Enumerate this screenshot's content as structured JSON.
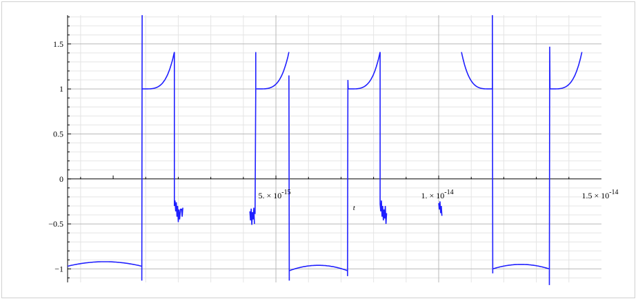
{
  "chart_data": {
    "type": "line",
    "title": "",
    "xlabel": "t",
    "ylabel": "",
    "xlim": [
      -1.4e-15,
      1.5e-14
    ],
    "ylim": [
      -1.15,
      1.82
    ],
    "grid": true,
    "legend": "none",
    "colors": {
      "line": "#1f1fff",
      "grid_major": "#b8b8b8",
      "grid_minor": "#e4e4e4",
      "axis": "#000000"
    },
    "x_ticks": [
      {
        "value": 5e-15,
        "mantissa": "5. × 10",
        "exp": "-15"
      },
      {
        "value": 1e-14,
        "mantissa": "1. × 10",
        "exp": "-14"
      },
      {
        "value": 1.5e-14,
        "mantissa": "1.5 × 10",
        "exp": "-14"
      }
    ],
    "y_ticks": [
      {
        "value": 1.5,
        "label": "1.5"
      },
      {
        "value": 1,
        "label": "1"
      },
      {
        "value": 0.5,
        "label": "0.5"
      },
      {
        "value": 0,
        "label": "0"
      },
      {
        "value": -0.5,
        "label": "−0.5"
      },
      {
        "value": -1,
        "label": "−1"
      }
    ],
    "series": [
      {
        "segments": [
          {
            "kind": "curve",
            "x0": -1.4e-15,
            "x1": 8.8e-16,
            "ycenter": -0.97,
            "dir": -1,
            "amp": 0.05
          },
          {
            "kind": "poly",
            "points": [
              [
                8.8e-16,
                -1.0
              ],
              [
                8.8e-16,
                -1.13
              ],
              [
                8.9e-16,
                1.82
              ]
            ]
          },
          {
            "kind": "curve",
            "x0": 8.9e-16,
            "x1": 1.88e-15,
            "ycenter": 1.0,
            "dir": 1,
            "amp": 0.41
          },
          {
            "kind": "poly",
            "points": [
              [
                1.88e-15,
                1.41
              ],
              [
                1.88e-15,
                -0.3
              ],
              [
                1.9e-15,
                -0.24
              ],
              [
                1.92e-15,
                -0.36
              ],
              [
                1.94e-15,
                -0.26
              ],
              [
                1.96e-15,
                -0.42
              ],
              [
                1.98e-15,
                -0.3
              ],
              [
                2e-15,
                -0.48
              ],
              [
                2.02e-15,
                -0.34
              ],
              [
                2.04e-15,
                -0.45
              ],
              [
                2.07e-15,
                -0.33
              ]
            ]
          },
          {
            "kind": "poly",
            "points": [
              [
                2.1e-15,
                -0.33
              ],
              [
                2.12e-15,
                -0.42
              ],
              [
                2.14e-15,
                -0.32
              ]
            ]
          },
          {
            "kind": "poly",
            "points": [
              [
                4.2e-15,
                -0.36
              ],
              [
                4.22e-15,
                -0.46
              ],
              [
                4.24e-15,
                -0.33
              ],
              [
                4.26e-15,
                -0.51
              ],
              [
                4.28e-15,
                -0.37
              ],
              [
                4.3e-15,
                -0.45
              ],
              [
                4.32e-15,
                -0.32
              ],
              [
                4.34e-15,
                -0.5
              ]
            ]
          },
          {
            "kind": "poly",
            "points": [
              [
                4.36e-15,
                -0.39
              ],
              [
                4.38e-15,
                1.0
              ],
              [
                4.38e-15,
                1.41
              ]
            ]
          },
          {
            "kind": "curve",
            "x0": 4.4e-15,
            "x1": 5.4e-15,
            "ycenter": 1.0,
            "dir": 1,
            "amp": 0.41
          },
          {
            "kind": "poly",
            "points": [
              [
                5.4e-15,
                1.0
              ],
              [
                5.4e-15,
                1.15
              ],
              [
                5.41e-15,
                -1.13
              ]
            ]
          },
          {
            "kind": "curve",
            "x0": 5.41e-15,
            "x1": 7.2e-15,
            "ycenter": -1.02,
            "dir": -1,
            "amp": 0.06
          },
          {
            "kind": "poly",
            "points": [
              [
                7.2e-15,
                -1.02
              ],
              [
                7.2e-15,
                -1.08
              ],
              [
                7.21e-15,
                1.1
              ],
              [
                7.22e-15,
                1.0
              ]
            ]
          },
          {
            "kind": "curve",
            "x0": 7.22e-15,
            "x1": 8.2e-15,
            "ycenter": 1.0,
            "dir": 1,
            "amp": 0.41
          },
          {
            "kind": "poly",
            "points": [
              [
                8.2e-15,
                1.41
              ],
              [
                8.2e-15,
                -0.28
              ],
              [
                8.22e-15,
                -0.36
              ],
              [
                8.24e-15,
                -0.24
              ],
              [
                8.26e-15,
                -0.42
              ],
              [
                8.28e-15,
                -0.3
              ],
              [
                8.3e-15,
                -0.46
              ],
              [
                8.32e-15,
                -0.34
              ],
              [
                8.34e-15,
                -0.44
              ],
              [
                8.36e-15,
                -0.3
              ],
              [
                8.38e-15,
                -0.5
              ],
              [
                8.4e-15,
                -0.38
              ]
            ]
          },
          {
            "kind": "poly",
            "points": [
              [
                1e-14,
                -0.27
              ],
              [
                1.002e-14,
                -0.34
              ],
              [
                1.004e-14,
                -0.25
              ],
              [
                1.006e-14,
                -0.38
              ],
              [
                1.008e-14,
                -0.3
              ],
              [
                1.01e-14,
                -0.41
              ]
            ]
          },
          {
            "kind": "curve",
            "x0": 1.07e-14,
            "x1": 1.165e-14,
            "ycenter": 1.0,
            "dir": 1,
            "amp": 0.41,
            "mirror": true
          },
          {
            "kind": "poly",
            "points": [
              [
                1.165e-14,
                1.0
              ],
              [
                1.165e-14,
                1.82
              ],
              [
                1.166e-14,
                -1.05
              ]
            ]
          },
          {
            "kind": "curve",
            "x0": 1.166e-14,
            "x1": 1.34e-14,
            "ycenter": -1.0,
            "dir": -1,
            "amp": 0.05
          },
          {
            "kind": "poly",
            "points": [
              [
                1.34e-14,
                -1.02
              ],
              [
                1.34e-14,
                -1.18
              ],
              [
                1.341e-14,
                1.47
              ],
              [
                1.342e-14,
                1.0
              ]
            ]
          },
          {
            "kind": "curve",
            "x0": 1.342e-14,
            "x1": 1.44e-14,
            "ycenter": 1.0,
            "dir": 1,
            "amp": 0.41
          }
        ]
      }
    ]
  }
}
